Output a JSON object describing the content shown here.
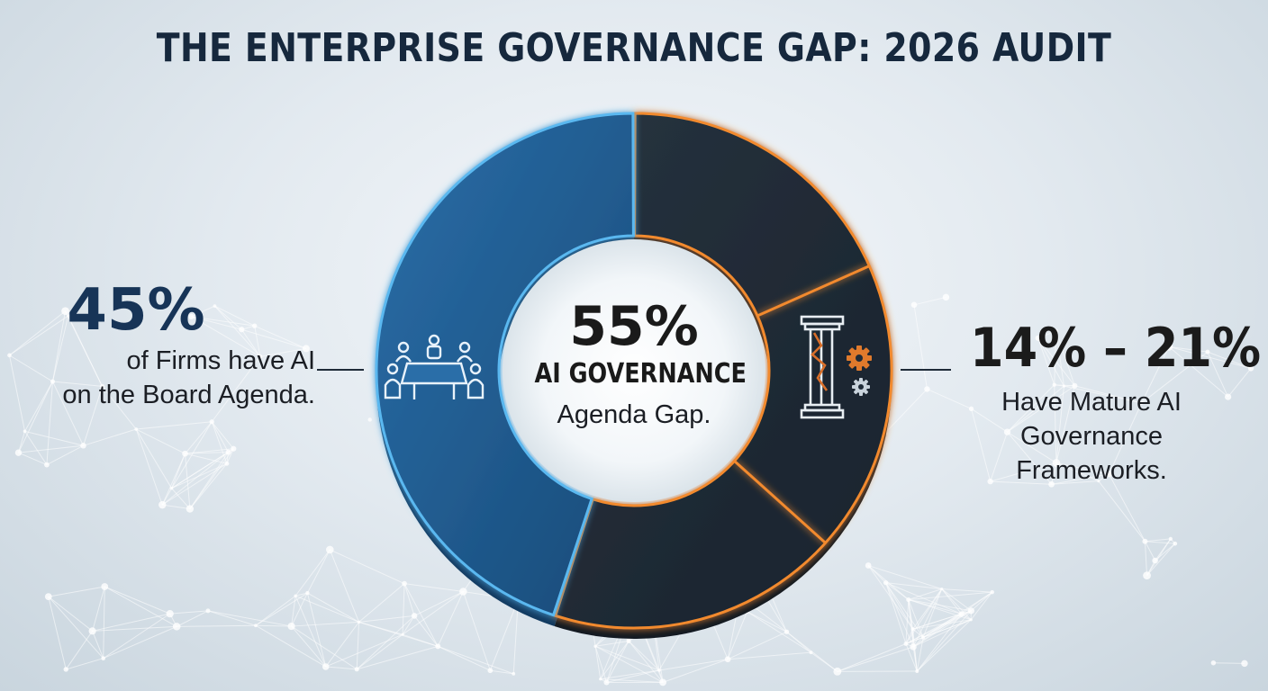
{
  "title": "THE ENTERPRISE GOVERNANCE GAP: 2026 AUDIT",
  "chart_data": {
    "type": "pie",
    "donut": true,
    "categories": [
      "AI on Board Agenda",
      "AI Governance Agenda Gap"
    ],
    "values": [
      45,
      55
    ],
    "colors": [
      "#1f5d93",
      "#1f2b38"
    ],
    "edge_colors": [
      "#5ab8f0",
      "#f28a2e"
    ],
    "gap_internal_divisions": 3
  },
  "left_callout": {
    "value": "45%",
    "line1": "of Firms have AI",
    "line2": "on the Board Agenda."
  },
  "center_callout": {
    "value": "55%",
    "label": "AI GOVERNANCE",
    "desc": "Agenda Gap."
  },
  "right_callout": {
    "value": "14% – 21%",
    "line1": "Have Mature AI",
    "line2": "Governance",
    "line3": "Frameworks."
  },
  "icons": {
    "left_segment": "boardroom-meeting-icon",
    "right_segment": "cracked-pillar-gears-icon"
  },
  "colors": {
    "title": "#16283d",
    "blue_segment": "#1f5d93",
    "dark_segment": "#1f2b38",
    "blue_glow": "#5ab8f0",
    "orange_glow": "#f28a2e"
  }
}
